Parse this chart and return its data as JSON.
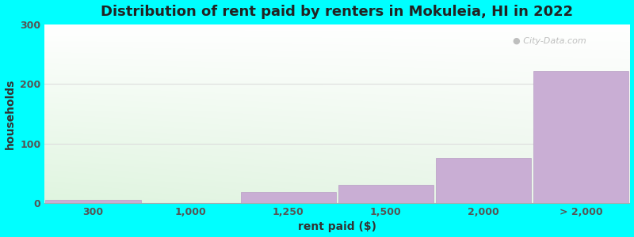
{
  "title": "Distribution of rent paid by renters in Mokuleia, HI in 2022",
  "xlabel": "rent paid ($)",
  "ylabel": "households",
  "background_color": "#00FFFF",
  "bar_labels": [
    "300",
    "1,000",
    "1,250",
    "1,500",
    "2,000",
    "> 2,000"
  ],
  "bar_values": [
    5,
    0,
    18,
    30,
    75,
    222
  ],
  "bar_color": "#c9aed4",
  "bar_edge_color": "#b89ec4",
  "ylim": [
    0,
    300
  ],
  "yticks": [
    0,
    100,
    200,
    300
  ],
  "title_fontsize": 13,
  "axis_label_fontsize": 10,
  "tick_fontsize": 9,
  "watermark_text": "City-Data.com",
  "grid_color": "#dddddd",
  "grad_color_topleft": "#d8efd8",
  "grad_color_topright": "#f5f5f5",
  "grad_color_bottomleft": "#e8f5e0",
  "grad_color_bottomright": "#ffffff"
}
